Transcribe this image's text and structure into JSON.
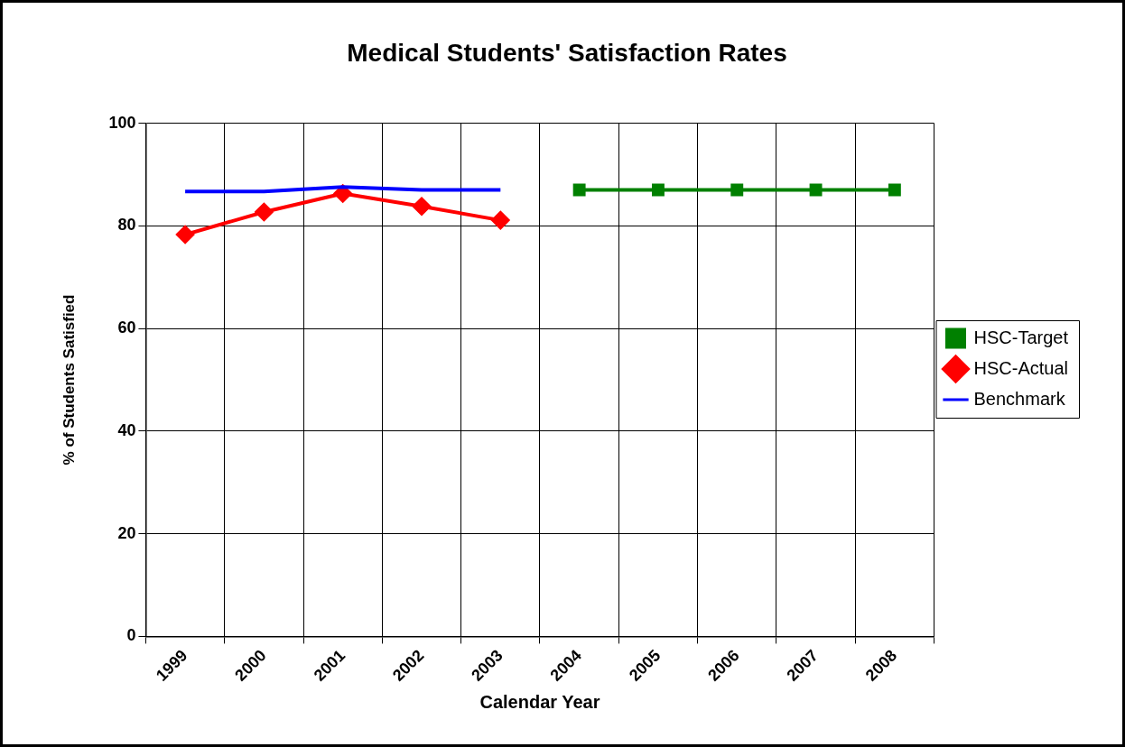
{
  "chart_data": {
    "type": "line",
    "title": "Medical Students' Satisfaction Rates",
    "xlabel": "Calendar Year",
    "ylabel": "% of Students Satisfied",
    "categories": [
      "1999",
      "2000",
      "2001",
      "2002",
      "2003",
      "2004",
      "2005",
      "2006",
      "2007",
      "2008"
    ],
    "series": [
      {
        "name": "HSC-Target",
        "color": "#008000",
        "marker": "square",
        "values": [
          null,
          null,
          null,
          null,
          null,
          87,
          87,
          87,
          87,
          87
        ]
      },
      {
        "name": "HSC-Actual",
        "color": "#ff0000",
        "marker": "diamond",
        "values": [
          78.3,
          82.7,
          86.3,
          83.8,
          81.1,
          null,
          null,
          null,
          null,
          null
        ]
      },
      {
        "name": "Benchmark",
        "color": "#0000ff",
        "marker": "none",
        "values": [
          86.7,
          86.7,
          87.6,
          87.0,
          87.0,
          null,
          null,
          null,
          null,
          null
        ]
      }
    ],
    "ylim": [
      0,
      100
    ],
    "yticks": [
      0,
      20,
      40,
      60,
      80,
      100
    ],
    "grid": true,
    "legend": "right"
  }
}
